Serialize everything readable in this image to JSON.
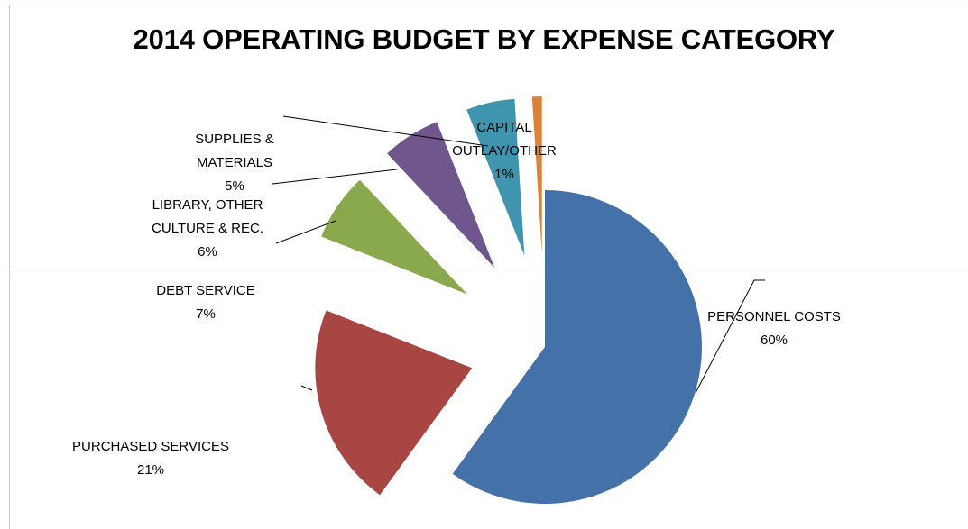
{
  "chart_data": {
    "type": "pie",
    "title": "2014 OPERATING BUDGET BY EXPENSE CATEGORY",
    "categories": [
      "PERSONNEL COSTS",
      "PURCHASED SERVICES",
      "DEBT SERVICE",
      "LIBRARY, OTHER CULTURE & REC.",
      "SUPPLIES & MATERIALS",
      "CAPITAL OUTLAY/OTHER"
    ],
    "values": [
      60,
      21,
      7,
      6,
      5,
      1
    ],
    "data_labels": [
      [
        "PERSONNEL COSTS",
        "60%"
      ],
      [
        "PURCHASED SERVICES",
        "21%"
      ],
      [
        "DEBT SERVICE",
        "7%"
      ],
      [
        "LIBRARY, OTHER",
        "CULTURE & REC.",
        "6%"
      ],
      [
        "SUPPLIES &",
        "MATERIALS",
        "5%"
      ],
      [
        "CAPITAL",
        "OUTLAY/OTHER",
        "1%"
      ]
    ],
    "colors": [
      "#4472a8",
      "#a84644",
      "#8aa84c",
      "#6f578e",
      "#3f95ae",
      "#da8237"
    ],
    "exploded": true,
    "legend": "none",
    "grid": false
  }
}
